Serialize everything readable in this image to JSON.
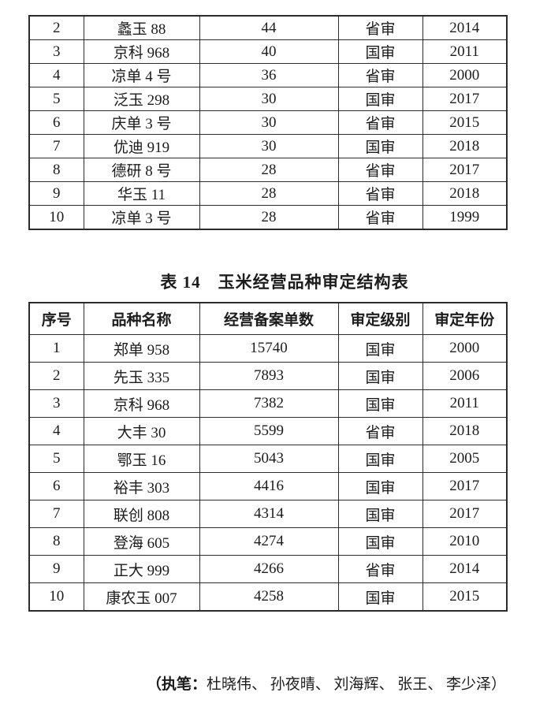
{
  "table1_partial": {
    "rows": [
      [
        "2",
        "蠡玉 88",
        "44",
        "省审",
        "2014"
      ],
      [
        "3",
        "京科 968",
        "40",
        "国审",
        "2011"
      ],
      [
        "4",
        "凉单 4 号",
        "36",
        "省审",
        "2000"
      ],
      [
        "5",
        "泛玉 298",
        "30",
        "国审",
        "2017"
      ],
      [
        "6",
        "庆单 3 号",
        "30",
        "省审",
        "2015"
      ],
      [
        "7",
        "优迪 919",
        "30",
        "国审",
        "2018"
      ],
      [
        "8",
        "德研 8 号",
        "28",
        "省审",
        "2017"
      ],
      [
        "9",
        "华玉 11",
        "28",
        "省审",
        "2018"
      ],
      [
        "10",
        "凉单 3 号",
        "28",
        "省审",
        "1999"
      ]
    ]
  },
  "table2": {
    "title": "表 14　玉米经营品种审定结构表",
    "headers": [
      "序号",
      "品种名称",
      "经营备案单数",
      "审定级别",
      "审定年份"
    ],
    "rows": [
      [
        "1",
        "郑单 958",
        "15740",
        "国审",
        "2000"
      ],
      [
        "2",
        "先玉 335",
        "7893",
        "国审",
        "2006"
      ],
      [
        "3",
        "京科 968",
        "7382",
        "国审",
        "2011"
      ],
      [
        "4",
        "大丰 30",
        "5599",
        "省审",
        "2018"
      ],
      [
        "5",
        "鄂玉 16",
        "5043",
        "国审",
        "2005"
      ],
      [
        "6",
        "裕丰 303",
        "4416",
        "国审",
        "2017"
      ],
      [
        "7",
        "联创 808",
        "4314",
        "国审",
        "2017"
      ],
      [
        "8",
        "登海 605",
        "4274",
        "国审",
        "2010"
      ],
      [
        "9",
        "正大 999",
        "4266",
        "省审",
        "2014"
      ],
      [
        "10",
        "康农玉 007",
        "4258",
        "国审",
        "2015"
      ]
    ]
  },
  "footer": {
    "label": "（执笔：",
    "names": "杜晓伟、 孙夜晴、 刘海辉、 张王、 李少泽）"
  },
  "colors": {
    "background": "#ffffff",
    "text": "#1c1c1c",
    "border": "#2b2b2b"
  }
}
